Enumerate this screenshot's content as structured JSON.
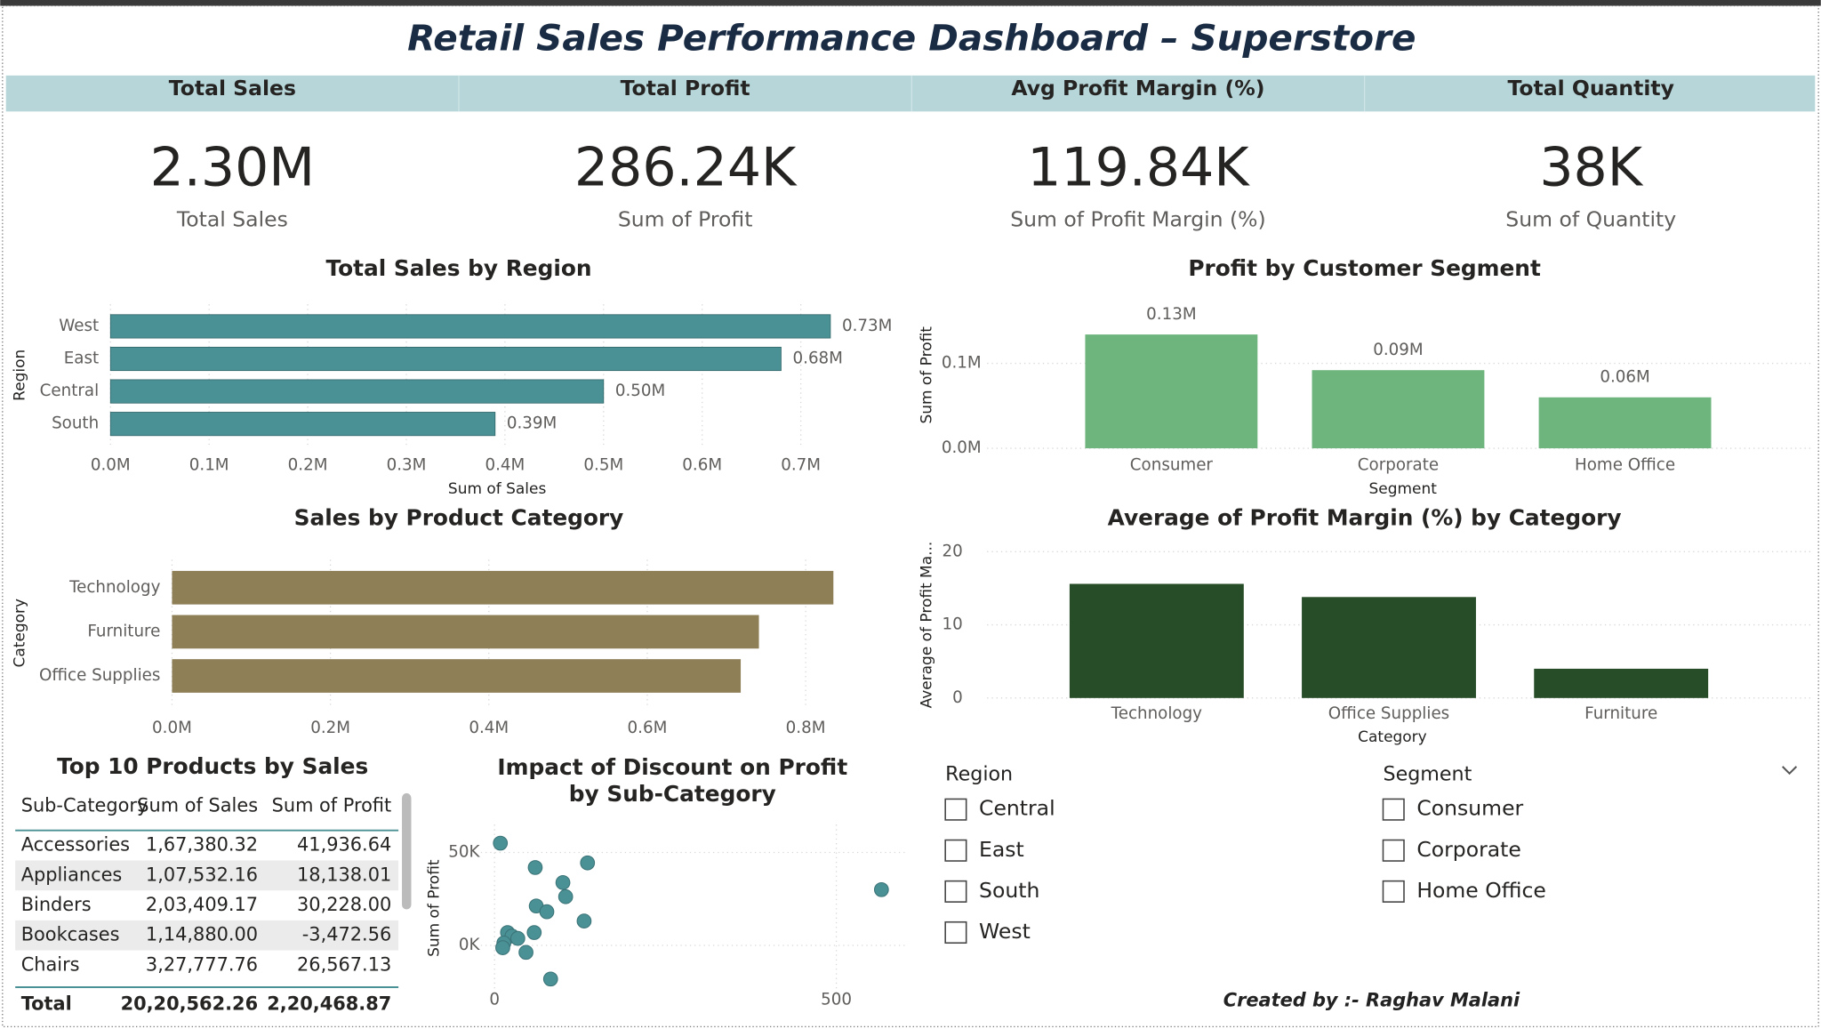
{
  "header": {
    "title": "Retail Sales Performance Dashboard – Superstore"
  },
  "kpis": [
    {
      "heading": "Total Sales",
      "value": "2.30M",
      "label": "Total Sales"
    },
    {
      "heading": "Total Profit",
      "value": "286.24K",
      "label": "Sum of Profit"
    },
    {
      "heading": "Avg Profit Margin (%)",
      "value": "119.84K",
      "label": "Sum of Profit Margin (%)"
    },
    {
      "heading": "Total Quantity",
      "value": "38K",
      "label": "Sum of Quantity"
    }
  ],
  "chart_data": [
    {
      "type": "bar",
      "orientation": "horizontal",
      "title": "Total Sales by Region",
      "categories": [
        "West",
        "East",
        "Central",
        "South"
      ],
      "values": [
        0.73,
        0.68,
        0.5,
        0.39
      ],
      "value_labels": [
        "0.73M",
        "0.68M",
        "0.50M",
        "0.39M"
      ],
      "color": "#4a9195",
      "xlim": [
        0,
        0.75
      ],
      "xticks": [
        {
          "value": 0,
          "label": "0.0M"
        },
        {
          "value": 0.1,
          "label": "0.1M"
        },
        {
          "value": 0.2,
          "label": "0.2M"
        },
        {
          "value": 0.3,
          "label": "0.3M"
        },
        {
          "value": 0.4,
          "label": "0.4M"
        },
        {
          "value": 0.5,
          "label": "0.5M"
        },
        {
          "value": 0.6,
          "label": "0.6M"
        },
        {
          "value": 0.7,
          "label": "0.7M"
        }
      ],
      "xlabel": "Sum of Sales",
      "ylabel": "Region",
      "grid": true
    },
    {
      "type": "bar",
      "orientation": "horizontal",
      "title": "Sales by Product Category",
      "categories": [
        "Technology",
        "Furniture",
        "Office Supplies"
      ],
      "values": [
        0.835,
        0.741,
        0.718
      ],
      "color": "#8e7f57",
      "xlim": [
        0,
        0.84
      ],
      "xticks": [
        {
          "value": 0,
          "label": "0.0M"
        },
        {
          "value": 0.2,
          "label": "0.2M"
        },
        {
          "value": 0.4,
          "label": "0.4M"
        },
        {
          "value": 0.6,
          "label": "0.6M"
        },
        {
          "value": 0.8,
          "label": "0.8M"
        }
      ],
      "ylabel": "Category",
      "grid": true
    },
    {
      "type": "bar",
      "orientation": "vertical",
      "title": "Profit by Customer Segment",
      "categories": [
        "Consumer",
        "Corporate",
        "Home Office"
      ],
      "values": [
        0.134,
        0.092,
        0.06
      ],
      "value_labels": [
        "0.13M",
        "0.09M",
        "0.06M"
      ],
      "color": "#6db57d",
      "ylim": [
        0,
        0.16
      ],
      "yticks": [
        {
          "value": 0,
          "label": "0.0M"
        },
        {
          "value": 0.1,
          "label": "0.1M"
        }
      ],
      "xlabel": "Segment",
      "ylabel": "Sum of Profit",
      "grid": true
    },
    {
      "type": "bar",
      "orientation": "vertical",
      "title": "Average of Profit Margin (%) by Category",
      "categories": [
        "Technology",
        "Office Supplies",
        "Furniture"
      ],
      "values": [
        15.6,
        13.8,
        4.0
      ],
      "color": "#264d27",
      "ylim": [
        0,
        20
      ],
      "yticks": [
        0,
        10,
        20
      ],
      "xlabel": "Category",
      "ylabel": "Average of Profit Ma...",
      "grid": true
    },
    {
      "type": "scatter",
      "title": "Impact of Discount on Profit by Sub-Category",
      "x": [
        8.5,
        59.5,
        136,
        100,
        104,
        61,
        76.5,
        566,
        131,
        58,
        19,
        25.5,
        34,
        13.6,
        12,
        46,
        82
      ],
      "y": [
        55000,
        41900,
        44400,
        33800,
        26200,
        21200,
        18100,
        30000,
        13100,
        6900,
        6900,
        5000,
        3750,
        1250,
        -1250,
        -3750,
        -18100
      ],
      "color": "#4a9195",
      "xlim": [
        -20,
        600
      ],
      "ylim": [
        -25000,
        65000
      ],
      "xticks": [
        0,
        500
      ],
      "yticks": [
        {
          "value": 0,
          "label": "0K"
        },
        {
          "value": 50000,
          "label": "50K"
        }
      ],
      "ylabel": "Sum of Profit",
      "grid": true
    }
  ],
  "table": {
    "title": "Top 10 Products by Sales",
    "columns": [
      "Sub-Category",
      "Sum of Sales",
      "Sum of Profit"
    ],
    "rows": [
      [
        "Accessories",
        "1,67,380.32",
        "41,936.64"
      ],
      [
        "Appliances",
        "1,07,532.16",
        "18,138.01"
      ],
      [
        "Binders",
        "2,03,409.17",
        "30,228.00"
      ],
      [
        "Bookcases",
        "1,14,880.00",
        "-3,472.56"
      ],
      [
        "Chairs",
        "3,27,777.76",
        "26,567.13"
      ]
    ],
    "total": [
      "Total",
      "20,20,562.26",
      "2,20,468.87"
    ]
  },
  "slicers": [
    {
      "title": "Region",
      "options": [
        "Central",
        "East",
        "South",
        "West"
      ]
    },
    {
      "title": "Segment",
      "options": [
        "Consumer",
        "Corporate",
        "Home Office"
      ]
    }
  ],
  "footer": "Created  by :- Raghav Malani"
}
